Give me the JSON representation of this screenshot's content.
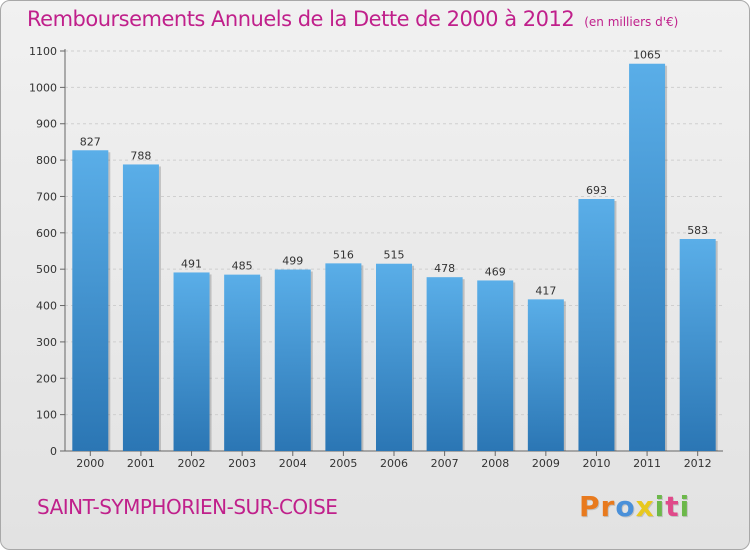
{
  "chart_data": {
    "type": "bar",
    "title": "Remboursements Annuels de la Dette de 2000 à 2012",
    "unit_label": "(en milliers d'€)",
    "categories": [
      "2000",
      "2001",
      "2002",
      "2003",
      "2004",
      "2005",
      "2006",
      "2007",
      "2008",
      "2009",
      "2010",
      "2011",
      "2012"
    ],
    "values": [
      827,
      788,
      491,
      485,
      499,
      516,
      515,
      478,
      469,
      417,
      693,
      1065,
      583
    ],
    "value_labels": [
      "827",
      "788",
      "491",
      "485",
      "499",
      "516",
      "515",
      "478",
      "469",
      "417",
      "693",
      "1065",
      "583"
    ],
    "ylim": [
      0,
      1100
    ],
    "yticks": [
      0,
      100,
      200,
      300,
      400,
      500,
      600,
      700,
      800,
      900,
      1000,
      1100
    ],
    "ytick_labels": [
      "0",
      "100",
      "200",
      "300",
      "400",
      "500",
      "600",
      "700",
      "800",
      "900",
      "1000",
      "1100"
    ],
    "xlabel": "",
    "ylabel": "",
    "grid": true
  },
  "footer": {
    "city": "SAINT-SYMPHORIEN-SUR-COISE",
    "brand": "Proxiti",
    "brand_letters": [
      "P",
      "r",
      "o",
      "x",
      "i",
      "t",
      "i"
    ],
    "brand_colors": [
      "#e87a1e",
      "#e87a1e",
      "#4a90d9",
      "#e8c81e",
      "#6cb84a",
      "#e04a8a",
      "#6cb84a"
    ]
  },
  "colors": {
    "accent": "#c0208b",
    "bar_top": "#5aaee8",
    "bar_bottom": "#2b76b4"
  }
}
